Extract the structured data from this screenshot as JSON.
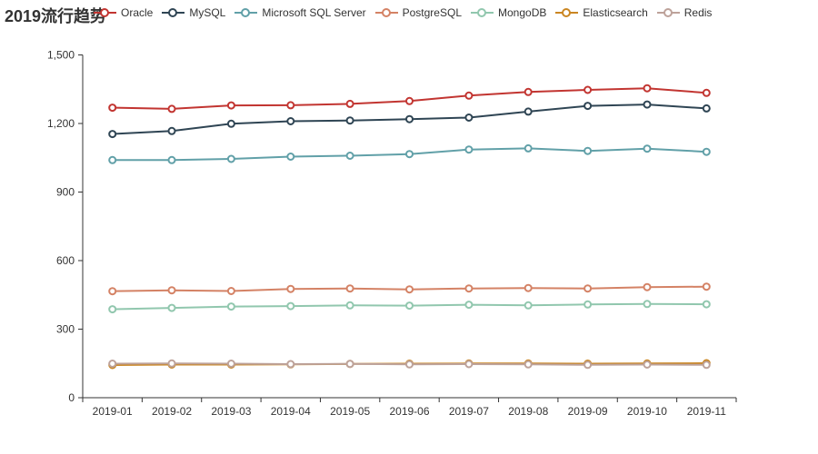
{
  "title": "2019流行趋势",
  "chart_data": {
    "type": "line",
    "title": "2019流行趋势",
    "x": [
      "2019-01",
      "2019-02",
      "2019-03",
      "2019-04",
      "2019-05",
      "2019-06",
      "2019-07",
      "2019-08",
      "2019-09",
      "2019-10",
      "2019-11"
    ],
    "series": [
      {
        "name": "Oracle",
        "color": "#c23531",
        "values": [
          1269,
          1264,
          1279,
          1280,
          1286,
          1298,
          1322,
          1338,
          1347,
          1354,
          1334
        ]
      },
      {
        "name": "MySQL",
        "color": "#2f4554",
        "values": [
          1154,
          1167,
          1199,
          1210,
          1213,
          1219,
          1226,
          1252,
          1277,
          1283,
          1266
        ]
      },
      {
        "name": "Microsoft SQL Server",
        "color": "#61a0a8",
        "values": [
          1040,
          1040,
          1045,
          1055,
          1059,
          1066,
          1086,
          1091,
          1080,
          1090,
          1076
        ]
      },
      {
        "name": "PostgreSQL",
        "color": "#d48265",
        "values": [
          466,
          470,
          467,
          476,
          478,
          474,
          478,
          480,
          478,
          484,
          486
        ]
      },
      {
        "name": "MongoDB",
        "color": "#91c7ae",
        "values": [
          387,
          393,
          399,
          401,
          404,
          403,
          407,
          404,
          408,
          410,
          409
        ]
      },
      {
        "name": "Elasticsearch",
        "color": "#ca8622",
        "values": [
          143,
          145,
          145,
          146,
          148,
          149,
          150,
          150,
          149,
          150,
          151
        ]
      },
      {
        "name": "Redis",
        "color": "#bda29a",
        "values": [
          149,
          150,
          149,
          147,
          148,
          146,
          147,
          146,
          144,
          145,
          144
        ]
      }
    ],
    "xlabel": "",
    "ylabel": "",
    "ylim": [
      0,
      1500
    ],
    "yticks": [
      0,
      300,
      600,
      900,
      1200,
      1500
    ],
    "ytick_labels": [
      "0",
      "300",
      "600",
      "900",
      "1,200",
      "1,500"
    ],
    "grid": false,
    "legend_position": "top",
    "marker": "hollow-circle",
    "axis_color": "#333333",
    "text_color": "#333333",
    "background": "#ffffff"
  }
}
